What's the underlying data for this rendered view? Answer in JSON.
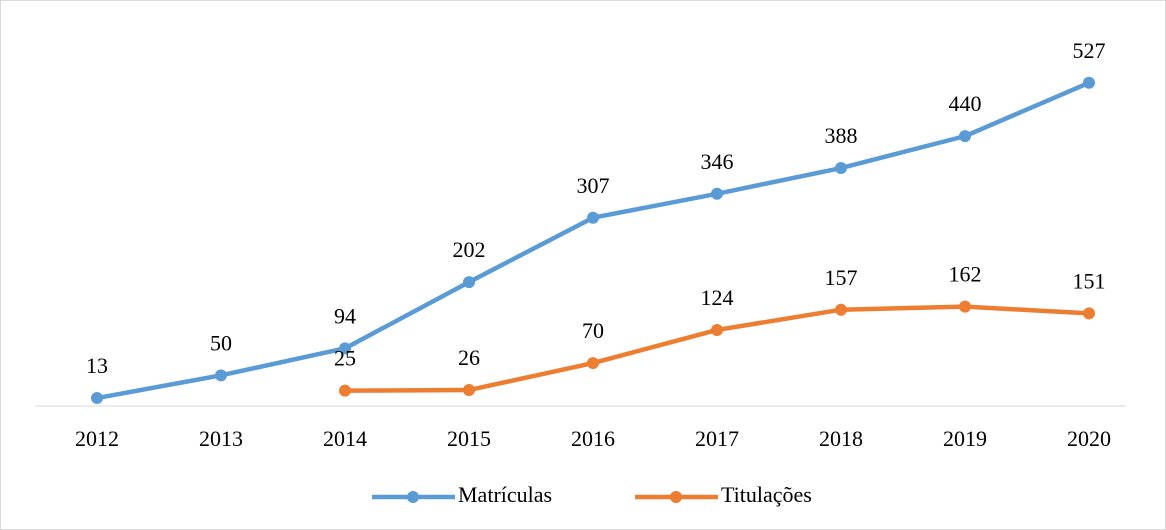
{
  "chart_data": {
    "type": "line",
    "categories": [
      "2012",
      "2013",
      "2014",
      "2015",
      "2016",
      "2017",
      "2018",
      "2019",
      "2020"
    ],
    "series": [
      {
        "name": "Matrículas",
        "color": "#5b9bd5",
        "values": [
          13,
          50,
          94,
          202,
          307,
          346,
          388,
          440,
          527
        ]
      },
      {
        "name": "Titulações",
        "color": "#ed7d31",
        "values": [
          null,
          null,
          25,
          26,
          70,
          124,
          157,
          162,
          151
        ]
      }
    ],
    "ylim": [
      0,
      600
    ],
    "legend": "bottom"
  }
}
